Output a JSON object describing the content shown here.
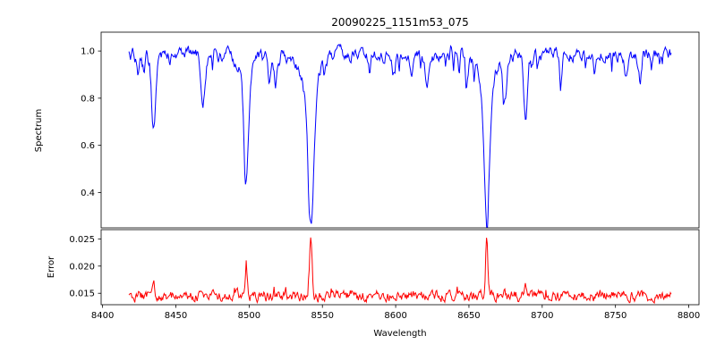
{
  "chart_data": {
    "type": "line",
    "title": "20090225_1151m53_075",
    "xlabel": "Wavelength",
    "xlim": [
      8399,
      8807
    ],
    "x_range": [
      8418,
      8788
    ],
    "x_step": 0.5,
    "noise_seed": 42,
    "grid": false,
    "legend": "none",
    "xticks": [
      {
        "v": 8400,
        "label": "8400"
      },
      {
        "v": 8450,
        "label": "8450"
      },
      {
        "v": 8500,
        "label": "8500"
      },
      {
        "v": 8550,
        "label": "8550"
      },
      {
        "v": 8600,
        "label": "8600"
      },
      {
        "v": 8650,
        "label": "8650"
      },
      {
        "v": 8700,
        "label": "8700"
      },
      {
        "v": 8750,
        "label": "8750"
      },
      {
        "v": 8800,
        "label": "8800"
      }
    ],
    "panels": [
      {
        "name": "spectrum",
        "ylabel": "Spectrum",
        "ylim": [
          0.25,
          1.08
        ],
        "yticks": [
          {
            "v": 0.4,
            "label": "0.4"
          },
          {
            "v": 0.6,
            "label": "0.6"
          },
          {
            "v": 0.8,
            "label": "0.8"
          },
          {
            "v": 1.0,
            "label": "1.0"
          }
        ],
        "color": "#0000ff",
        "continuum": 0.985,
        "noise_amp": 0.04,
        "spike_prob": 0.06,
        "spike_amp": 0.06
      },
      {
        "name": "error",
        "ylabel": "Error",
        "ylim": [
          0.0129,
          0.0267
        ],
        "yticks": [
          {
            "v": 0.015,
            "label": "0.015"
          },
          {
            "v": 0.02,
            "label": "0.020"
          },
          {
            "v": 0.025,
            "label": "0.025"
          }
        ],
        "color": "#ff0000",
        "baseline": 0.0145,
        "noise_amp": 0.0015,
        "line_coupling": 0.022,
        "width_factor": 0.55
      }
    ],
    "absorption_lines": [
      {
        "center": 8424.2,
        "depth": 0.08,
        "sigma": 1.0
      },
      {
        "center": 8434.8,
        "depth": 0.34,
        "sigma": 1.3
      },
      {
        "center": 8468.4,
        "depth": 0.19,
        "sigma": 1.4
      },
      {
        "center": 8498.0,
        "depth": 0.45,
        "sigma": 1.6
      },
      {
        "center": 8498.0,
        "depth": 0.08,
        "sigma": 5.0
      },
      {
        "center": 8514.1,
        "depth": 0.12,
        "sigma": 1.0
      },
      {
        "center": 8518.1,
        "depth": 0.13,
        "sigma": 1.0
      },
      {
        "center": 8542.1,
        "depth": 0.6,
        "sigma": 2.0
      },
      {
        "center": 8542.1,
        "depth": 0.12,
        "sigma": 7.0
      },
      {
        "center": 8582.3,
        "depth": 0.07,
        "sigma": 1.0
      },
      {
        "center": 8598.8,
        "depth": 0.09,
        "sigma": 1.0
      },
      {
        "center": 8611.3,
        "depth": 0.07,
        "sigma": 1.0
      },
      {
        "center": 8621.3,
        "depth": 0.12,
        "sigma": 1.1
      },
      {
        "center": 8648.5,
        "depth": 0.08,
        "sigma": 1.0
      },
      {
        "center": 8662.1,
        "depth": 0.58,
        "sigma": 1.8
      },
      {
        "center": 8662.1,
        "depth": 0.12,
        "sigma": 6.0
      },
      {
        "center": 8674.7,
        "depth": 0.17,
        "sigma": 1.1
      },
      {
        "center": 8688.6,
        "depth": 0.27,
        "sigma": 1.3
      },
      {
        "center": 8712.7,
        "depth": 0.08,
        "sigma": 1.0
      },
      {
        "center": 8736.0,
        "depth": 0.07,
        "sigma": 1.0
      },
      {
        "center": 8757.2,
        "depth": 0.09,
        "sigma": 1.0
      },
      {
        "center": 8766.6,
        "depth": 0.12,
        "sigma": 1.0
      }
    ]
  }
}
